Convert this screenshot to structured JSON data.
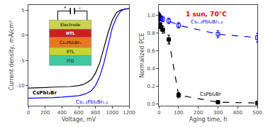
{
  "chart_data": [
    {
      "type": "line",
      "x_label": "Voltage, mV",
      "y_label": "Current density, mA/cm²",
      "xlim": [
        0,
        1200
      ],
      "ylim": [
        -14,
        6
      ],
      "xticks": [
        0,
        200,
        400,
        600,
        800,
        1000,
        1200
      ],
      "yticks": [
        -10,
        -5,
        0,
        5
      ],
      "grid": false,
      "line_style": "solid",
      "series": [
        {
          "color": "black",
          "x": [
            0,
            50,
            100,
            200,
            300,
            400,
            500,
            600,
            650,
            700,
            750,
            800,
            850,
            900,
            950,
            1000,
            1050,
            1100,
            1150,
            1200
          ],
          "values": [
            -10.5,
            -10.5,
            -10.4,
            -10.4,
            -10.3,
            -10.3,
            -10.2,
            -10.0,
            -9.8,
            -9.4,
            -8.8,
            -7.5,
            -5.5,
            -2.5,
            0.5,
            3.0,
            4.5,
            5.0,
            5.2,
            5.3
          ]
        },
        {
          "color": "blue",
          "x": [
            0,
            50,
            100,
            200,
            300,
            400,
            500,
            600,
            650,
            700,
            750,
            800,
            850,
            900,
            950,
            1000,
            1050,
            1100,
            1150,
            1200
          ],
          "values": [
            -12.5,
            -12.5,
            -12.5,
            -12.4,
            -12.4,
            -12.3,
            -12.2,
            -12.0,
            -11.8,
            -11.5,
            -11.0,
            -10.0,
            -8.2,
            -5.5,
            -2.0,
            1.5,
            3.5,
            4.8,
            5.2,
            5.3
          ]
        }
      ],
      "annotations": [
        {
          "text": "CsPbI₂Br",
          "color": "black"
        },
        {
          "text": "Cs₁.₂PbI₂Br₁.₂",
          "color": "blue"
        },
        {
          "text": "ITO",
          "color": "black"
        },
        {
          "text": "ETL",
          "color": "black"
        },
        {
          "text": "CsₓPbI₂Brₓ",
          "color": "black"
        },
        {
          "text": "HTL",
          "color": "white"
        },
        {
          "text": "Electrode",
          "color": "black"
        },
        {
          "text": "*",
          "color": "black"
        },
        {
          "text": "-",
          "color": "black"
        }
      ]
    },
    {
      "type": "line",
      "x_label": "Aging time, h",
      "y_label": "Normalized PCE",
      "xlim": [
        0,
        500
      ],
      "ylim": [
        -0.02,
        1.12
      ],
      "xticks": [
        0,
        100,
        200,
        300,
        400,
        500
      ],
      "yticks": [
        {
          "value": 0,
          "label": "0.0"
        },
        0.2,
        0.4,
        0.6,
        0.8,
        {
          "value": 1,
          "label": "1.0"
        }
      ],
      "grid": false,
      "line_style": "dashed",
      "series": [
        {
          "color": "blue",
          "marker": "square-open",
          "x": [
            0,
            5,
            10,
            20,
            50,
            100,
            300,
            500
          ],
          "values": [
            1.0,
            0.98,
            0.97,
            0.96,
            0.94,
            0.89,
            0.79,
            0.75
          ],
          "yerr": [
            0.04,
            0.03,
            0.03,
            0.03,
            0.03,
            0.03,
            0.04,
            0.05
          ]
        },
        {
          "color": "black",
          "marker": "square",
          "x": [
            0,
            5,
            10,
            20,
            50,
            100,
            300,
            500
          ],
          "values": [
            1.0,
            0.9,
            0.87,
            0.84,
            0.73,
            0.1,
            0.02,
            0.01
          ],
          "yerr": [
            0.03,
            0.04,
            0.04,
            0.04,
            0.05,
            0.03,
            0.01,
            0.01
          ]
        }
      ],
      "annotations": [
        {
          "text": "1 sun, 70°C",
          "color": "red"
        },
        {
          "text": "Cs₁.₂PbI₂Br₁.₂",
          "color": "blue"
        },
        {
          "text": "CsPbI₂Br",
          "color": "black"
        }
      ]
    }
  ]
}
